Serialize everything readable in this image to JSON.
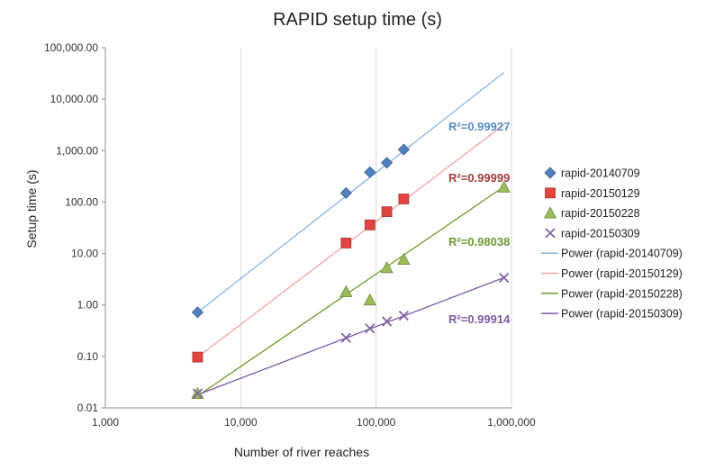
{
  "chart_data": {
    "type": "scatter",
    "title": "RAPID setup time (s)",
    "xlabel": "Number of river reaches",
    "ylabel": "Setup time (s)",
    "x_scale": "log",
    "y_scale": "log",
    "xlim": [
      1000,
      1000000
    ],
    "ylim": [
      0.01,
      100000
    ],
    "x_ticks": [
      "1,000",
      "10,000",
      "100,000",
      "1,000,000"
    ],
    "y_ticks": [
      "0.01",
      "0.10",
      "1.00",
      "10.00",
      "100.00",
      "1,000.00",
      "10,000.00",
      "100,000.00"
    ],
    "grid": "vertical",
    "legend_position": "right",
    "series": [
      {
        "name": "rapid-20140709",
        "marker": "diamond",
        "color": "#4F81BD",
        "x": [
          4800,
          60000,
          90000,
          120000,
          160000
        ],
        "y": [
          0.72,
          150,
          380,
          580,
          1050
        ]
      },
      {
        "name": "rapid-20150129",
        "marker": "square",
        "color": "#E0443E",
        "x": [
          4800,
          60000,
          90000,
          120000,
          160000
        ],
        "y": [
          0.097,
          16,
          36,
          65,
          115
        ]
      },
      {
        "name": "rapid-20150228",
        "marker": "triangle",
        "color": "#9BBB59",
        "x": [
          4800,
          60000,
          90000,
          120000,
          160000,
          880000
        ],
        "y": [
          0.019,
          1.8,
          1.25,
          5.3,
          7.7,
          195
        ]
      },
      {
        "name": "rapid-20150309",
        "marker": "x",
        "color": "#8064A2",
        "x": [
          4800,
          60000,
          90000,
          120000,
          160000,
          880000
        ],
        "y": [
          0.019,
          0.23,
          0.35,
          0.48,
          0.62,
          3.4
        ]
      }
    ],
    "trendlines": [
      {
        "name": "Power (rapid-20140709)",
        "color": "#8DB4E2",
        "x": [
          4800,
          880000
        ],
        "y": [
          0.72,
          33000
        ]
      },
      {
        "name": "Power (rapid-20150129)",
        "color": "#F2A3A1",
        "x": [
          4800,
          880000
        ],
        "y": [
          0.097,
          3200
        ]
      },
      {
        "name": "Power (rapid-20150228)",
        "color": "#6F9A2B",
        "x": [
          4800,
          880000
        ],
        "y": [
          0.017,
          200
        ]
      },
      {
        "name": "Power (rapid-20150309)",
        "color": "#7B5BA6",
        "x": [
          4800,
          880000
        ],
        "y": [
          0.018,
          3.4
        ]
      }
    ],
    "annotations": [
      {
        "text": "R²=0.99927",
        "color": "#5A8BC9"
      },
      {
        "text": "R²=0.99999",
        "color": "#A43A3A"
      },
      {
        "text": "R²=0.98038",
        "color": "#6E9A30"
      },
      {
        "text": "R²=0.99914",
        "color": "#7B5BA6"
      }
    ]
  }
}
